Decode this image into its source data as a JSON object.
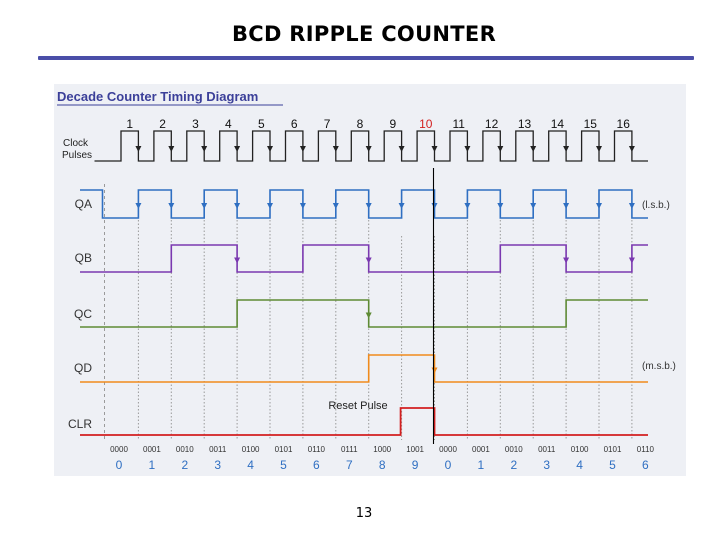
{
  "slide": {
    "title": "BCD RIPPLE COUNTER",
    "page_number": "13"
  },
  "diagram": {
    "title": "Decade Counter Timing Diagram",
    "clock_label_line1": "Clock",
    "clock_label_line2": "Pulses",
    "clock_pulses": [
      "1",
      "2",
      "3",
      "4",
      "5",
      "6",
      "7",
      "8",
      "9",
      "10",
      "11",
      "12",
      "13",
      "14",
      "15",
      "16"
    ],
    "highlight_pulse": "10",
    "signals": [
      {
        "id": "QA",
        "label": "QA",
        "note": "(l.s.b.)",
        "color": "#2f6fc2"
      },
      {
        "id": "QB",
        "label": "QB",
        "note": "",
        "color": "#7a38b0"
      },
      {
        "id": "QC",
        "label": "QC",
        "note": "",
        "color": "#5e8a34"
      },
      {
        "id": "QD",
        "label": "QD",
        "note": "(m.s.b.)",
        "color": "#f08a1c"
      },
      {
        "id": "CLR",
        "label": "CLR",
        "note": "",
        "color": "#d31f1f"
      }
    ],
    "reset_label": "Reset Pulse",
    "binary_states": [
      "0000",
      "0001",
      "0010",
      "0011",
      "0100",
      "0101",
      "0110",
      "0111",
      "1000",
      "1001",
      "0000",
      "0001",
      "0010",
      "0011",
      "0100",
      "0101",
      "0110"
    ],
    "decimal_states": [
      "0",
      "1",
      "2",
      "3",
      "4",
      "5",
      "6",
      "7",
      "8",
      "9",
      "0",
      "1",
      "2",
      "3",
      "4",
      "5",
      "6"
    ],
    "colors": {
      "title": "#3b3f99",
      "clock": "#222222",
      "decimal": "#2f6fc2",
      "highlight": "#d31f1f",
      "reset_line": "#000000"
    }
  }
}
